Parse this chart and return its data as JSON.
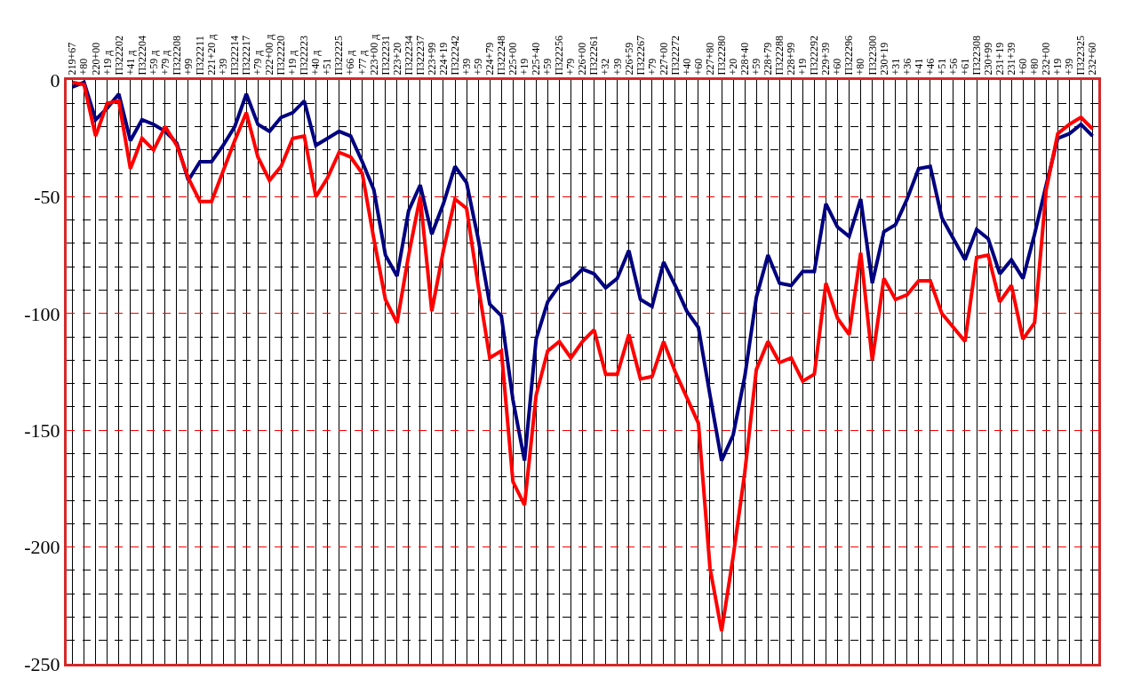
{
  "chart_data": {
    "type": "line",
    "categories": [
      "219+67",
      "+80",
      "220+00",
      "+19 д",
      "П322202",
      "+41 д",
      "П322204",
      "+59 д",
      "+79 д",
      "П322208",
      "+99",
      "П322211",
      "221+20 д",
      "+39",
      "П322214",
      "П322217",
      "+79 д",
      "222+00 д",
      "П322220",
      "+19 д",
      "П322223",
      "+40 д",
      "+51",
      "П322225",
      "+66 д",
      "+77 д",
      "223+00 д",
      "П322231",
      "223+20",
      "П322234",
      "П322237",
      "223+99",
      "224+19",
      "П322242",
      "+39",
      "+59",
      "224+79",
      "П322248",
      "225+00",
      "+19",
      "225+40",
      "+59",
      "П322256",
      "+79",
      "226+00",
      "П322261",
      "+32",
      "+39",
      "226+59",
      "П322267",
      "+79",
      "227+00",
      "П322272",
      "+40",
      "+60",
      "227+80",
      "П322280",
      "+20",
      "228+40",
      "+59",
      "228+79",
      "П322288",
      "228+99",
      "+19",
      "П322292",
      "229+39",
      "+60",
      "П322296",
      "+80",
      "П322300",
      "230+19",
      "+31",
      "+36",
      "+41",
      "+46",
      "+51",
      "+56",
      "+61",
      "П322308",
      "230+99",
      "231+19",
      "231+39",
      "+60",
      "+80",
      "232+00",
      "+19",
      "+39",
      "П322325",
      "232+60"
    ],
    "series": [
      {
        "color": "#000080",
        "values": [
          -3,
          -1,
          -17,
          -12,
          -6,
          -26,
          -17,
          -19,
          -22,
          -27,
          -43,
          -35,
          -35,
          -28,
          -20,
          -6,
          -19,
          -22,
          -16,
          -14,
          -9,
          -28,
          -25,
          -22,
          -24,
          -35,
          -47,
          -75,
          -84,
          -56,
          -45,
          -66,
          -53,
          -37,
          -44,
          -68,
          -96,
          -101,
          -137,
          -163,
          -111,
          -95,
          -88,
          -86,
          -81,
          -83,
          -89,
          -85,
          -73,
          -94,
          -97,
          -78,
          -88,
          -99,
          -106,
          -135,
          -163,
          -152,
          -127,
          -93,
          -75,
          -87,
          -88,
          -82,
          -82,
          -53,
          -63,
          -67,
          -51,
          -87,
          -65,
          -62,
          -51,
          -38,
          -37,
          -59,
          -68,
          -77,
          -64,
          -68,
          -83,
          -77,
          -85,
          -66,
          -45,
          -25,
          -23,
          -19,
          -24
        ]
      },
      {
        "color": "#ff0000",
        "values": [
          -1,
          -2,
          -24,
          -10,
          -9,
          -38,
          -25,
          -30,
          -20,
          -28,
          -42,
          -52,
          -52,
          -39,
          -26,
          -14,
          -33,
          -43,
          -37,
          -25,
          -24,
          -50,
          -42,
          -31,
          -33,
          -40,
          -68,
          -94,
          -104,
          -75,
          -50,
          -99,
          -73,
          -51,
          -55,
          -88,
          -119,
          -116,
          -172,
          -182,
          -135,
          -116,
          -112,
          -119,
          -112,
          -107,
          -126,
          -126,
          -109,
          -128,
          -127,
          -112,
          -125,
          -136,
          -147,
          -209,
          -236,
          -204,
          -168,
          -124,
          -112,
          -121,
          -119,
          -129,
          -126,
          -87,
          -102,
          -109,
          -74,
          -120,
          -85,
          -94,
          -92,
          -86,
          -86,
          -100,
          -106,
          -112,
          -76,
          -75,
          -95,
          -88,
          -111,
          -104,
          -47,
          -23,
          -19,
          -16,
          -21
        ]
      }
    ],
    "ylim": [
      -250,
      0
    ],
    "yticks": [
      -250,
      -200,
      -150,
      -100,
      -50,
      0
    ],
    "grid": true,
    "marker": "none",
    "line_style": "solid"
  }
}
